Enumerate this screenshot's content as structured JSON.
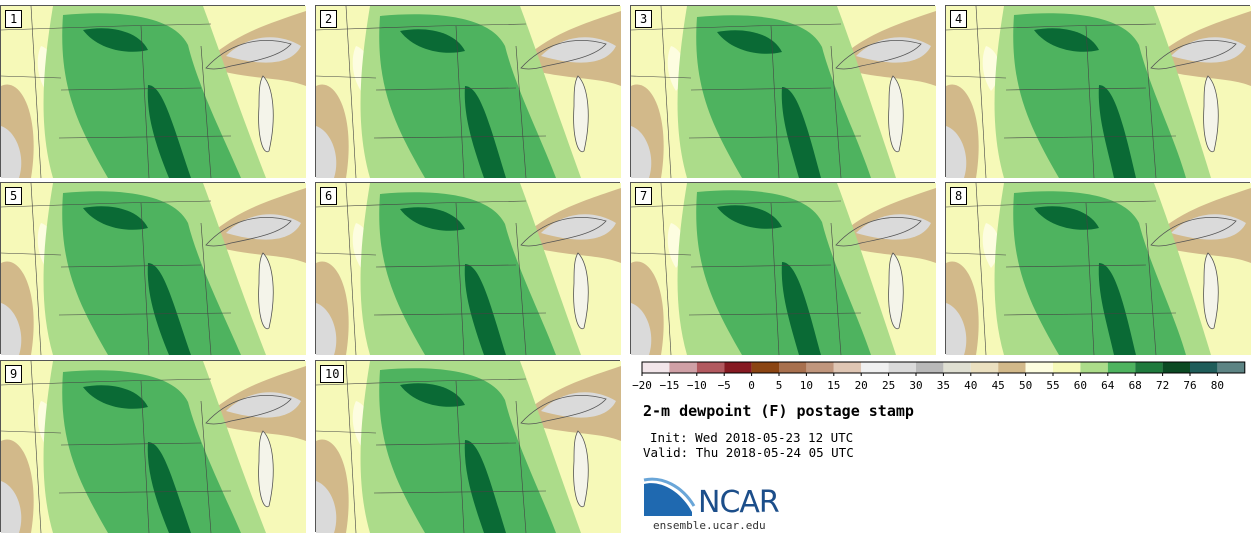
{
  "title": "2-m dewpoint (F) postage stamp",
  "init_label": "Init:",
  "init_value": "Wed 2018-05-23 12 UTC",
  "valid_label": "Valid:",
  "valid_value": "Thu 2018-05-24 05 UTC",
  "logo": {
    "org": "NCAR",
    "url": "ensemble.ucar.edu",
    "icon": "ncar-swoosh-icon"
  },
  "members": [
    "1",
    "2",
    "3",
    "4",
    "5",
    "6",
    "7",
    "8",
    "9",
    "10"
  ],
  "colorbar": {
    "tick_labels": [
      "−20",
      "−15",
      "−10",
      "−5",
      "0",
      "5",
      "10",
      "15",
      "20",
      "25",
      "30",
      "35",
      "40",
      "45",
      "50",
      "55",
      "60",
      "64",
      "68",
      "72",
      "76",
      "80"
    ],
    "colors": [
      "#f2e6ea",
      "#cfa0a6",
      "#b2595f",
      "#861a22",
      "#8b4513",
      "#a8704e",
      "#c0967d",
      "#dfc6b4",
      "#f0f0f0",
      "#dadada",
      "#b9b9b9",
      "#dfdfd2",
      "#ebe0c0",
      "#d2b98a",
      "#fdfde0",
      "#f6f9b8",
      "#acdc8a",
      "#4eb35f",
      "#1f7a3d",
      "#0b4a24",
      "#1f5d5a",
      "#5d8484"
    ]
  },
  "map_colors": {
    "bg": "#f6f9b8",
    "light_green": "#acdc8a",
    "green": "#4eb35f",
    "dark_green": "#0a6a35",
    "tan": "#d2b98a",
    "cream": "#fdfde0",
    "gray": "#dadada"
  }
}
